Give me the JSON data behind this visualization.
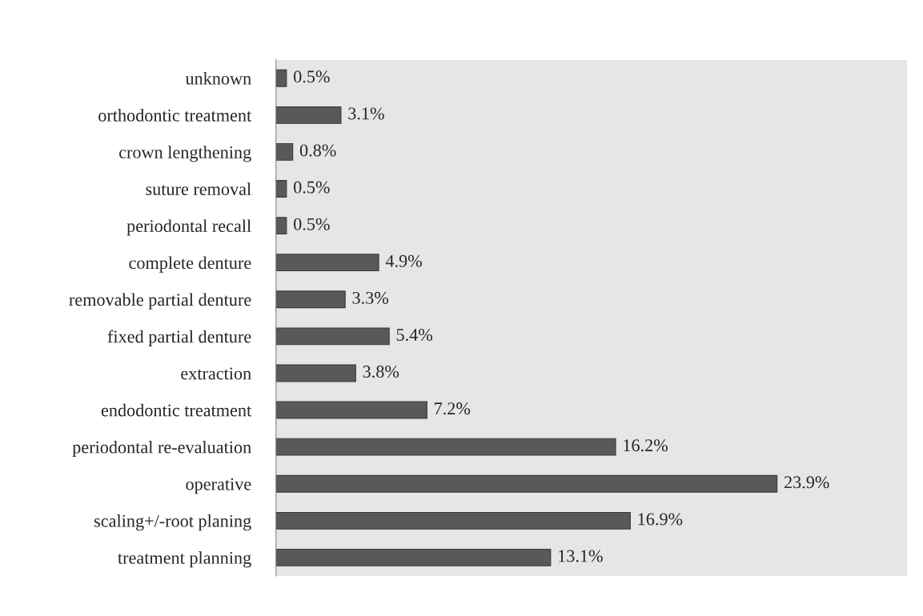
{
  "chart_data": {
    "type": "bar",
    "orientation": "horizontal",
    "categories": [
      "unknown",
      "orthodontic treatment",
      "crown lengthening",
      "suture removal",
      "periodontal recall",
      "complete denture",
      "removable partial denture",
      "fixed partial denture",
      "extraction",
      "endodontic treatment",
      "periodontal re-evaluation",
      "operative",
      "scaling+/-root planing",
      "treatment planning"
    ],
    "values": [
      0.5,
      3.1,
      0.8,
      0.5,
      0.5,
      4.9,
      3.3,
      5.4,
      3.8,
      7.2,
      16.2,
      23.9,
      16.9,
      13.1
    ],
    "value_labels": [
      "0.5%",
      "3.1%",
      "0.8%",
      "0.5%",
      "0.5%",
      "4.9%",
      "3.3%",
      "5.4%",
      "3.8%",
      "7.2%",
      "16.2%",
      "23.9%",
      "16.9%",
      "13.1%"
    ],
    "color": "#595959",
    "grid": false,
    "legend": false
  }
}
